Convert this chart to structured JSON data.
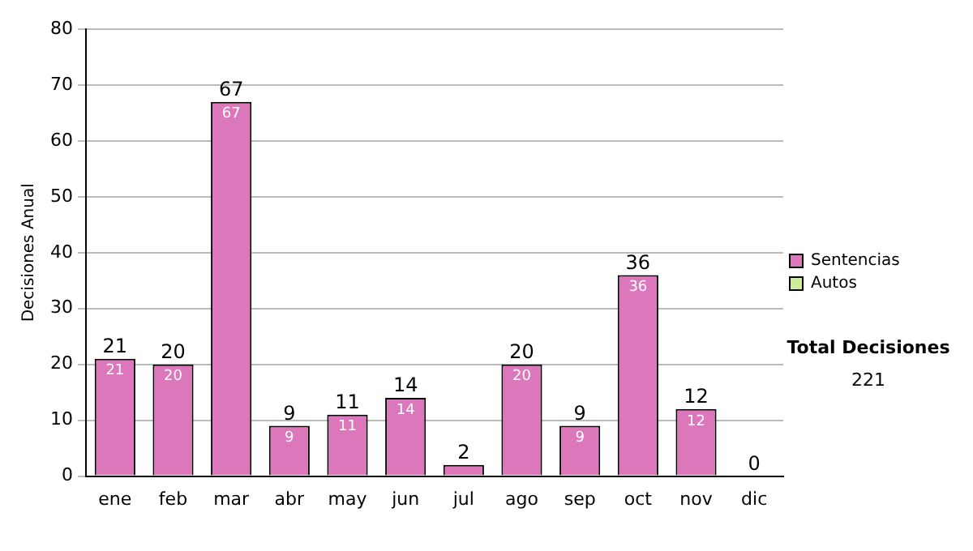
{
  "chart_data": {
    "type": "bar",
    "ylabel": "Decisiones Anual",
    "categories": [
      "ene",
      "feb",
      "mar",
      "abr",
      "may",
      "jun",
      "jul",
      "ago",
      "sep",
      "oct",
      "nov",
      "dic"
    ],
    "series": [
      {
        "name": "Sentencias",
        "color": "#dd77bb",
        "values": [
          21,
          20,
          67,
          9,
          11,
          14,
          2,
          20,
          9,
          36,
          12,
          0
        ],
        "value_labels": [
          "21",
          "20",
          "67",
          "9",
          "11",
          "14",
          null,
          "20",
          "9",
          "36",
          "12",
          null
        ]
      },
      {
        "name": "Autos",
        "color": "#ccee99",
        "values": [
          0,
          0,
          0,
          0,
          0,
          0,
          0,
          0,
          0,
          0,
          0,
          0
        ]
      }
    ],
    "stacked": true,
    "totals": [
      "21",
      "20",
      "67",
      "9",
      "11",
      "14",
      "2",
      "20",
      "9",
      "36",
      "12",
      "0"
    ],
    "ylim": [
      0,
      80
    ],
    "yticks": [
      0,
      10,
      20,
      30,
      40,
      50,
      60,
      70,
      80
    ],
    "grid": "y",
    "legend": "right",
    "annotations": [
      "Total Decisiones",
      "221"
    ]
  }
}
